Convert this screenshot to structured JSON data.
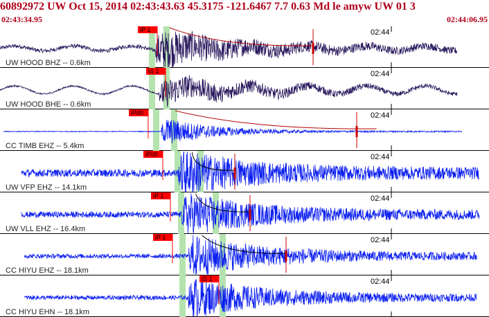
{
  "header": {
    "title": "60892972 UW Oct 15, 2014 02:43:43.63    45.3175 -121.6467  7.7 0.63 Md le amyw UW 01    3",
    "start_time": "02:43:34.95",
    "end_time": "02:44:06.95"
  },
  "colors": {
    "header_text": "#b0001a",
    "trace_dark": "#2a1a5e",
    "trace_blue": "#0a1ef0",
    "pick_box": "#ff0000",
    "window_green": "#b5e3b0",
    "amplitude_pick": "#cc0000",
    "duration_curve_red": "#b40000",
    "duration_curve_black": "#000000"
  },
  "panels": [
    {
      "label": "UW HOOD BHZ -- 0.6km",
      "time_mark": "02:44",
      "pick_label": "iP 1",
      "color": "dark",
      "data_start": 0.0,
      "data_end": 0.935,
      "onset": 0.318,
      "pre_amp": 0.2,
      "quake_amp": 0.95,
      "coda": 0.16,
      "wave_amp": 0.12,
      "wave_period": 0.12,
      "windows": [
        0.31,
        0.34
      ],
      "amp_pick": 0.64,
      "duration": "red",
      "duration_end": 0.64
    },
    {
      "label": "UW HOOD BHE -- 0.6km",
      "time_mark": "02:44",
      "pick_label": "iS 1",
      "color": "dark",
      "data_start": 0.0,
      "data_end": 0.935,
      "onset": 0.325,
      "pick_pos": 0.335,
      "pre_amp": 0.08,
      "quake_amp": 0.7,
      "coda": 0.2,
      "wave_amp": 0.2,
      "wave_period": 0.12,
      "windows": [
        0.31,
        0.34
      ],
      "amp_pick": null,
      "duration": "none"
    },
    {
      "label": "CC TIMB EHZ -- 5.4km",
      "time_mark": "02:44",
      "pick_label": "iPd0",
      "color": "blue",
      "data_start": 0.007,
      "data_end": 0.945,
      "onset": 0.33,
      "pick_pos": 0.3,
      "pre_amp": 0.04,
      "quake_amp": 0.75,
      "coda": 0.1,
      "wave_amp": 0.0,
      "wave_period": 0.1,
      "windows": [
        0.318,
        0.355
      ],
      "amp_pick": 0.73,
      "duration": "red",
      "duration_end": 0.77
    },
    {
      "label": "UW VFP EHZ -- 14.1km",
      "time_mark": "02:44",
      "pick_label": "iPc0",
      "color": "blue",
      "data_start": 0.043,
      "data_end": 0.98,
      "onset": 0.365,
      "pick_pos": 0.33,
      "pre_amp": 0.38,
      "quake_amp": 1.0,
      "coda": 0.14,
      "wave_amp": 0.0,
      "wave_period": 0.1,
      "windows": [
        0.362,
        0.41
      ],
      "amp_pick": 0.48,
      "duration": "black",
      "duration_end": 0.48
    },
    {
      "label": "UW VLL EHZ -- 16.4km",
      "time_mark": "02:44",
      "pick_label": "iP 1",
      "color": "blue",
      "data_start": 0.043,
      "data_end": 0.98,
      "onset": 0.372,
      "pick_pos": 0.345,
      "pre_amp": 0.3,
      "quake_amp": 1.0,
      "coda": 0.14,
      "wave_amp": 0.0,
      "wave_period": 0.1,
      "windows": [
        0.37,
        0.44
      ],
      "amp_pick": 0.512,
      "duration": "black",
      "duration_end": 0.512
    },
    {
      "label": "CC HIYU EHZ -- 18.1km",
      "time_mark": "02:44",
      "pick_label": "iP 1",
      "color": "blue",
      "data_start": 0.05,
      "data_end": 0.975,
      "onset": 0.385,
      "pick_pos": 0.35,
      "pre_amp": 0.22,
      "quake_amp": 1.0,
      "coda": 0.15,
      "wave_amp": 0.0,
      "wave_period": 0.1,
      "windows": [
        0.372,
        0.455
      ],
      "amp_pick": 0.585,
      "duration": "black",
      "duration_end": 0.585
    },
    {
      "label": "CC HIYU EHN -- 18.1km",
      "time_mark": "02:44",
      "pick_label": "iS 1",
      "color": "blue",
      "data_start": 0.05,
      "data_end": 0.975,
      "onset": 0.385,
      "pick_pos": 0.445,
      "pre_amp": 0.22,
      "quake_amp": 0.95,
      "coda": 0.15,
      "wave_amp": 0.0,
      "wave_period": 0.1,
      "windows": [
        0.372,
        0.455
      ],
      "amp_pick": null,
      "duration": "none"
    }
  ]
}
